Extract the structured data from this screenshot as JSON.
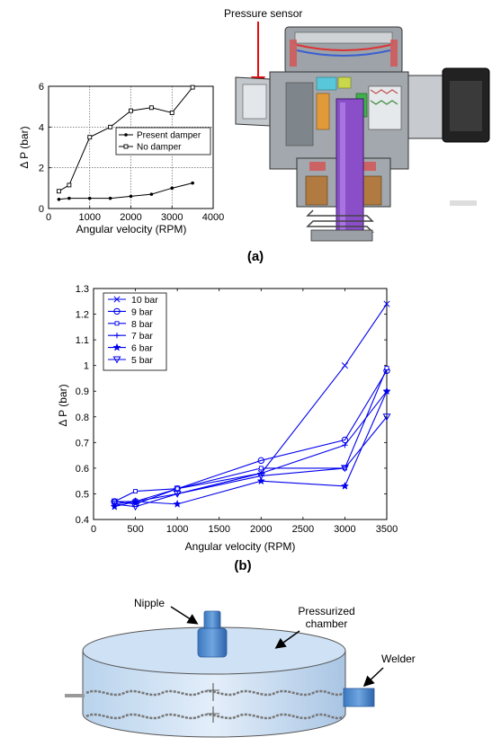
{
  "panel_labels": {
    "a": "(a)",
    "b": "(b)"
  },
  "diagram_a": {
    "pressure_sensor_label": "Pressure sensor"
  },
  "diagram_c": {
    "nipple_label": "Nipple",
    "chamber_label_line1": "Pressurized",
    "chamber_label_line2": "chamber",
    "welder_label": "Welder"
  },
  "chart_data": [
    {
      "type": "line",
      "title": "",
      "xlabel": "Angular velocity (RPM)",
      "ylabel": "Δ P (bar)",
      "xlim": [
        0,
        4000
      ],
      "ylim": [
        0,
        6
      ],
      "xticks": [
        0,
        1000,
        2000,
        3000,
        4000
      ],
      "yticks": [
        0,
        2,
        4,
        6
      ],
      "grid": true,
      "legend_position": "right",
      "series": [
        {
          "name": "Present damper",
          "marker": "dot",
          "color": "#000000",
          "x": [
            250,
            500,
            1000,
            1500,
            2000,
            2500,
            3000,
            3500
          ],
          "y": [
            0.45,
            0.5,
            0.5,
            0.5,
            0.6,
            0.7,
            1.0,
            1.25
          ]
        },
        {
          "name": "No damper",
          "marker": "square",
          "color": "#000000",
          "x": [
            250,
            500,
            1000,
            1500,
            2000,
            2500,
            3000,
            3500
          ],
          "y": [
            0.85,
            1.15,
            3.5,
            4.0,
            4.8,
            4.95,
            4.7,
            5.95
          ]
        }
      ]
    },
    {
      "type": "line",
      "title": "",
      "xlabel": "Angular velocity (RPM)",
      "ylabel": "Δ P (bar)",
      "xlim": [
        0,
        3500
      ],
      "ylim": [
        0.4,
        1.3
      ],
      "xticks": [
        0,
        500,
        1000,
        1500,
        2000,
        2500,
        3000,
        3500
      ],
      "yticks": [
        0.4,
        0.5,
        0.6,
        0.7,
        0.8,
        0.9,
        1.0,
        1.1,
        1.2,
        1.3
      ],
      "ytick_labels": [
        "0.4",
        "0.5",
        "0.6",
        "0.7",
        "0.8",
        "0.9",
        "1",
        "1.1",
        "1.2",
        "1.3"
      ],
      "grid": false,
      "legend_position": "top-left",
      "x": [
        250,
        500,
        1000,
        2000,
        3000,
        3500
      ],
      "series": [
        {
          "name": "10 bar",
          "marker": "x",
          "color": "#0000ee",
          "y": [
            0.47,
            0.46,
            0.52,
            0.58,
            1.0,
            1.24
          ]
        },
        {
          "name": "9 bar",
          "marker": "circle",
          "color": "#0000ee",
          "y": [
            0.47,
            0.47,
            0.52,
            0.63,
            0.71,
            0.98
          ]
        },
        {
          "name": "8 bar",
          "marker": "square",
          "color": "#0000ee",
          "y": [
            0.47,
            0.51,
            0.52,
            0.6,
            0.6,
            0.99
          ]
        },
        {
          "name": "7 bar",
          "marker": "plus",
          "color": "#0000ee",
          "y": [
            0.46,
            0.47,
            0.5,
            0.58,
            0.69,
            0.9
          ]
        },
        {
          "name": "6 bar",
          "marker": "star",
          "color": "#0000ee",
          "y": [
            0.45,
            0.47,
            0.46,
            0.55,
            0.53,
            0.9
          ]
        },
        {
          "name": "5 bar",
          "marker": "triangle-down",
          "color": "#0000ee",
          "y": [
            0.46,
            0.45,
            0.5,
            0.57,
            0.6,
            0.8
          ]
        }
      ]
    }
  ]
}
